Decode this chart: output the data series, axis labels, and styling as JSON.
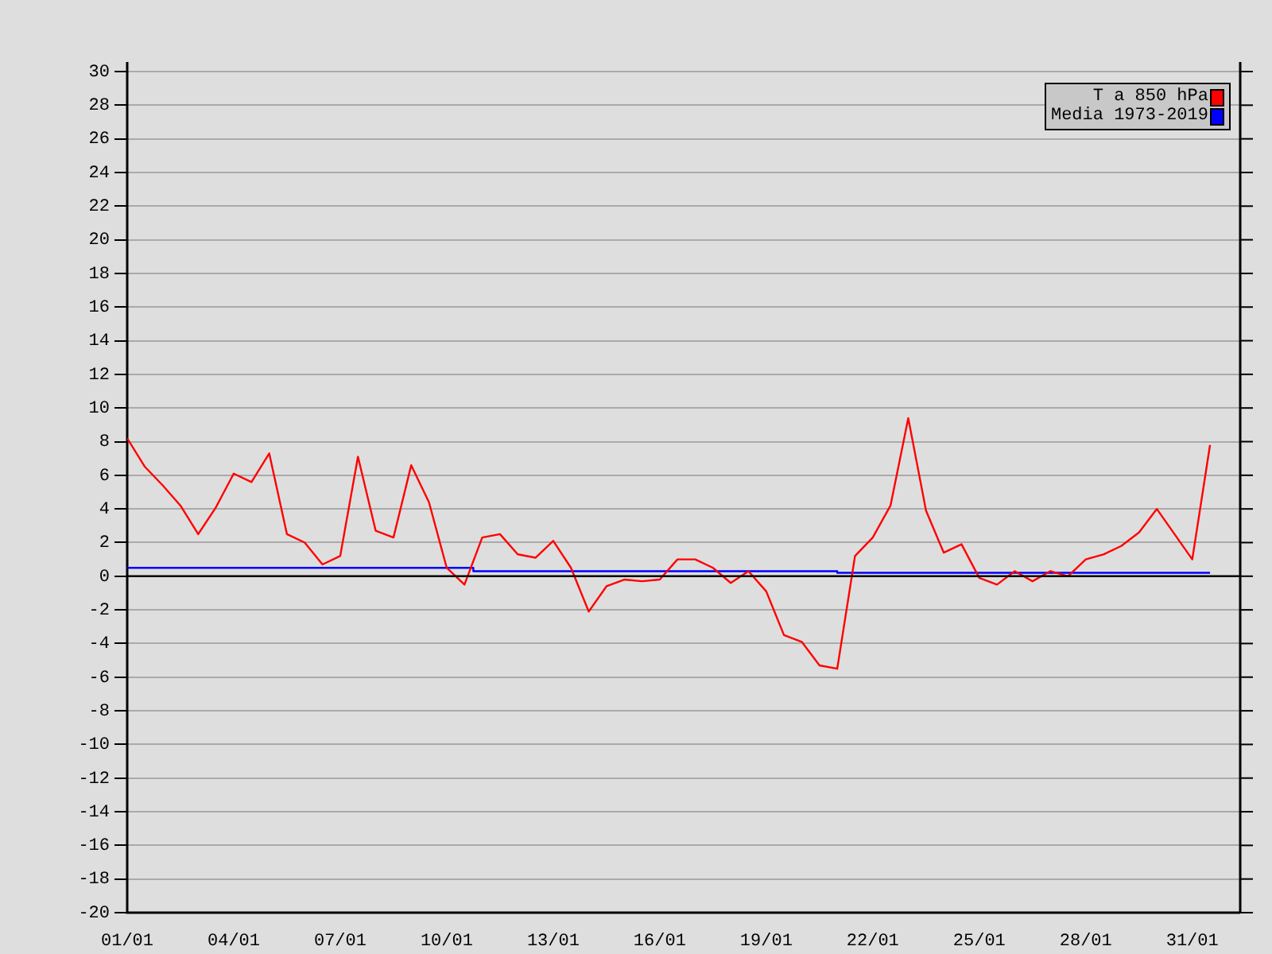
{
  "chart_data": {
    "type": "line",
    "x": [
      "--01-01T00:00",
      "--01-01T12:00",
      "--01-02T00:00",
      "--01-02T12:00",
      "--01-03T00:00",
      "--01-03T12:00",
      "--01-04T00:00",
      "--01-04T12:00",
      "--01-05T00:00",
      "--01-05T12:00",
      "--01-06T00:00",
      "--01-06T12:00",
      "--01-07T00:00",
      "--01-07T12:00",
      "--01-08T00:00",
      "--01-08T12:00",
      "--01-09T00:00",
      "--01-09T12:00",
      "--01-10T00:00",
      "--01-10T12:00",
      "--01-11T00:00",
      "--01-11T12:00",
      "--01-12T00:00",
      "--01-12T12:00",
      "--01-13T00:00",
      "--01-13T12:00",
      "--01-14T00:00",
      "--01-14T12:00",
      "--01-15T00:00",
      "--01-15T12:00",
      "--01-16T00:00",
      "--01-16T12:00",
      "--01-17T00:00",
      "--01-17T12:00",
      "--01-18T00:00",
      "--01-18T12:00",
      "--01-19T00:00",
      "--01-19T12:00",
      "--01-20T00:00",
      "--01-20T12:00",
      "--01-21T00:00",
      "--01-21T12:00",
      "--01-22T00:00",
      "--01-22T12:00",
      "--01-23T00:00",
      "--01-23T12:00",
      "--01-24T00:00",
      "--01-24T12:00",
      "--01-25T00:00",
      "--01-25T12:00",
      "--01-26T00:00",
      "--01-26T12:00",
      "--01-27T00:00",
      "--01-27T12:00",
      "--01-28T00:00",
      "--01-28T12:00",
      "--01-29T00:00",
      "--01-29T12:00",
      "--01-30T00:00",
      "--01-30T12:00",
      "--01-31T00:00",
      "--01-31T12:00"
    ],
    "series": [
      {
        "name": "T a 850 hPa",
        "color": "#ff0000",
        "values": [
          8.2,
          6.5,
          5.4,
          4.2,
          2.5,
          4.1,
          6.1,
          5.6,
          7.3,
          2.5,
          2.0,
          0.7,
          1.2,
          7.1,
          2.7,
          2.3,
          6.6,
          4.4,
          0.5,
          -0.5,
          2.3,
          2.5,
          1.3,
          1.1,
          2.1,
          0.5,
          -2.1,
          -0.6,
          -0.2,
          -0.3,
          -0.2,
          1.0,
          1.0,
          0.5,
          -0.4,
          0.3,
          -0.9,
          -3.5,
          -3.9,
          -5.3,
          -5.5,
          1.2,
          2.3,
          4.2,
          9.4,
          3.9,
          1.4,
          1.9,
          -0.1,
          -0.5,
          0.3,
          -0.3,
          0.3,
          0.0,
          1.0,
          1.3,
          1.8,
          2.6,
          4.0,
          2.5,
          1.0,
          7.8
        ]
      },
      {
        "name": "Media 1973-2019",
        "type": "step",
        "color": "#0000ff",
        "x": [
          "--01-01T00:00",
          "--01-10T18:00",
          "--01-21T00:00",
          "--01-31T12:00"
        ],
        "values": [
          0.5,
          0.3,
          0.2,
          0.2
        ]
      }
    ],
    "xlim": [
      "--01-01T00:00",
      "--02-01T08:24"
    ],
    "xticks": [
      {
        "value": "--01-01",
        "label": "01/01"
      },
      {
        "value": "--01-04",
        "label": "04/01"
      },
      {
        "value": "--01-07",
        "label": "07/01"
      },
      {
        "value": "--01-10",
        "label": "10/01"
      },
      {
        "value": "--01-13",
        "label": "13/01"
      },
      {
        "value": "--01-16",
        "label": "16/01"
      },
      {
        "value": "--01-19",
        "label": "19/01"
      },
      {
        "value": "--01-22",
        "label": "22/01"
      },
      {
        "value": "--01-25",
        "label": "25/01"
      },
      {
        "value": "--01-28",
        "label": "28/01"
      },
      {
        "value": "--01-31",
        "label": "31/01"
      }
    ],
    "ylim": [
      -20,
      30
    ],
    "yticks": [
      -20,
      -18,
      -16,
      -14,
      -12,
      -10,
      -8,
      -6,
      -4,
      -2,
      0,
      2,
      4,
      6,
      8,
      10,
      12,
      14,
      16,
      18,
      20,
      22,
      24,
      26,
      28,
      30
    ],
    "grid": "y",
    "legend": "top right",
    "marker": "none",
    "ref_lines": [
      {
        "axis": "y",
        "value": 0,
        "color": "#000000"
      }
    ]
  }
}
